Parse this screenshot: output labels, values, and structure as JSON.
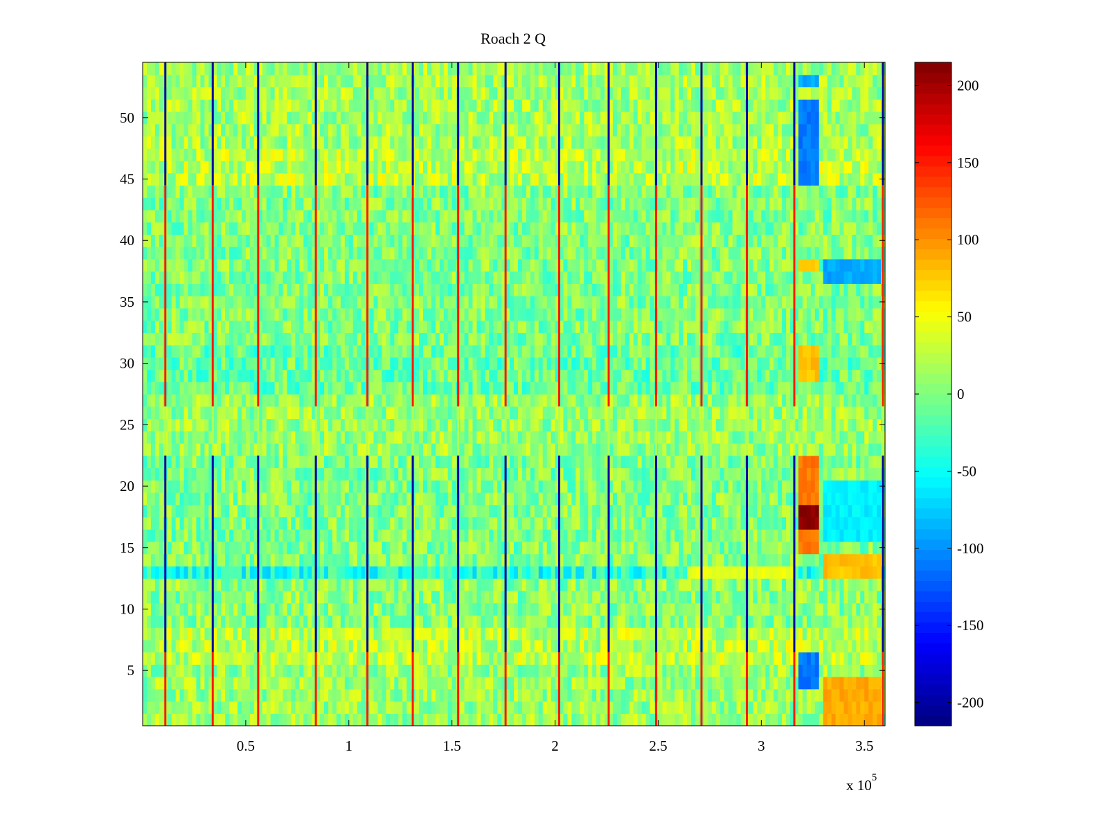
{
  "chart_data": {
    "type": "heatmap",
    "title": "Roach 2 Q",
    "xlabel": "",
    "ylabel": "",
    "x_exponent_label": "x 10",
    "x_exponent_power": "5",
    "xlim": [
      0,
      3.6
    ],
    "ylim": [
      0.5,
      54.5
    ],
    "x_ticks": [
      0.5,
      1,
      1.5,
      2,
      2.5,
      3,
      3.5
    ],
    "x_tick_labels": [
      "0.5",
      "1",
      "1.5",
      "2",
      "2.5",
      "3",
      "3.5"
    ],
    "y_ticks": [
      5,
      10,
      15,
      20,
      25,
      30,
      35,
      40,
      45,
      50
    ],
    "y_tick_labels": [
      "5",
      "10",
      "15",
      "20",
      "25",
      "30",
      "35",
      "40",
      "45",
      "50"
    ],
    "rows": 54,
    "grid": false,
    "colormap": "jet",
    "colorbar": {
      "clim": [
        -215,
        215
      ],
      "ticks": [
        -200,
        -150,
        -100,
        -50,
        0,
        50,
        100,
        150,
        200
      ],
      "tick_labels": [
        "-200",
        "-150",
        "-100",
        "-50",
        "0",
        "50",
        "100",
        "150",
        "200"
      ],
      "placement": "right"
    },
    "base_level_by_row_band": [
      {
        "rows": [
          1,
          5
        ],
        "level": 10
      },
      {
        "rows": [
          6,
          8
        ],
        "level": 25
      },
      {
        "rows": [
          9,
          12
        ],
        "level": 5
      },
      {
        "rows": [
          13,
          13
        ],
        "level": -40
      },
      {
        "rows": [
          14,
          22
        ],
        "level": 0
      },
      {
        "rows": [
          23,
          27
        ],
        "level": 10
      },
      {
        "rows": [
          28,
          31
        ],
        "level": -10
      },
      {
        "rows": [
          32,
          44
        ],
        "level": 0
      },
      {
        "rows": [
          45,
          47
        ],
        "level": 25
      },
      {
        "rows": [
          48,
          54
        ],
        "level": 15
      }
    ],
    "stripe_columns_x": [
      0.11,
      0.34,
      0.56,
      0.84,
      1.09,
      1.31,
      1.53,
      1.76,
      2.02,
      2.26,
      2.49,
      2.71,
      2.93,
      3.16,
      3.59
    ],
    "stripe_segments": [
      {
        "rows": [
          1,
          6
        ],
        "value": 150
      },
      {
        "rows": [
          7,
          22
        ],
        "value": -200
      },
      {
        "rows": [
          23,
          26
        ],
        "value": 20
      },
      {
        "rows": [
          27,
          44
        ],
        "value": 150
      },
      {
        "rows": [
          45,
          54
        ],
        "value": -200
      }
    ],
    "block_features": [
      {
        "x": [
          3.18,
          3.28
        ],
        "rows": [
          17,
          18
        ],
        "value": 210
      },
      {
        "x": [
          3.18,
          3.28
        ],
        "rows": [
          15,
          22
        ],
        "value": 110
      },
      {
        "x": [
          3.18,
          3.28
        ],
        "rows": [
          29,
          31
        ],
        "value": 80
      },
      {
        "x": [
          3.18,
          3.28
        ],
        "rows": [
          38,
          38
        ],
        "value": 70
      },
      {
        "x": [
          3.18,
          3.28
        ],
        "rows": [
          4,
          6
        ],
        "value": -110
      },
      {
        "x": [
          3.18,
          3.28
        ],
        "rows": [
          45,
          47
        ],
        "value": -110
      },
      {
        "x": [
          3.18,
          3.28
        ],
        "rows": [
          48,
          51
        ],
        "value": -110
      },
      {
        "x": [
          3.18,
          3.28
        ],
        "rows": [
          53,
          53
        ],
        "value": -90
      },
      {
        "x": [
          3.3,
          3.58
        ],
        "rows": [
          37,
          38
        ],
        "value": -90
      },
      {
        "x": [
          3.3,
          3.58
        ],
        "rows": [
          16,
          20
        ],
        "value": -60
      },
      {
        "x": [
          3.3,
          3.58
        ],
        "rows": [
          1,
          4
        ],
        "value": 90
      },
      {
        "x": [
          2.65,
          3.15
        ],
        "rows": [
          13,
          13
        ],
        "value": 45
      },
      {
        "x": [
          3.3,
          3.58
        ],
        "rows": [
          13,
          14
        ],
        "value": 80
      }
    ]
  }
}
